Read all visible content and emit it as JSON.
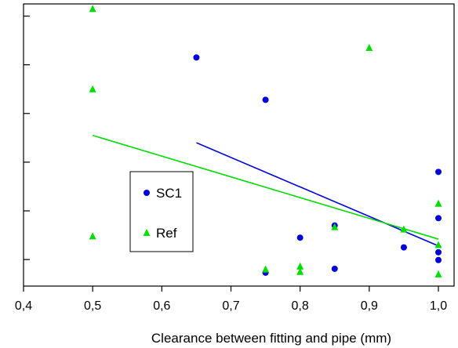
{
  "chart_data": {
    "type": "scatter",
    "title": "",
    "xlabel": "Clearance between fitting and pipe (mm)",
    "ylabel": "",
    "xlim": [
      0.4,
      1.0
    ],
    "ylim": [
      -0.545,
      5.25
    ],
    "x_ticks": [
      0.4,
      0.5,
      0.6,
      0.7,
      0.8,
      0.9,
      1.0
    ],
    "x_tick_labels": [
      "0,4",
      "0,5",
      "0,6",
      "0,7",
      "0,8",
      "0,9",
      "1,0"
    ],
    "y_ticks": [
      0,
      1,
      2,
      3,
      4,
      5
    ],
    "y_tick_labels": [
      "",
      "",
      "",
      "",
      "",
      ""
    ],
    "grid": false,
    "legend_position": "center-left",
    "series": [
      {
        "name": "SC1",
        "marker": "circle",
        "color": "#0000dd",
        "points": [
          {
            "x": 0.65,
            "y": 4.15
          },
          {
            "x": 0.75,
            "y": 3.28
          },
          {
            "x": 0.75,
            "y": -0.27
          },
          {
            "x": 0.8,
            "y": 0.45
          },
          {
            "x": 0.85,
            "y": 0.7
          },
          {
            "x": 0.85,
            "y": -0.19
          },
          {
            "x": 0.95,
            "y": 0.25
          },
          {
            "x": 1.0,
            "y": 1.8
          },
          {
            "x": 1.0,
            "y": 0.85
          },
          {
            "x": 1.0,
            "y": 0.15
          },
          {
            "x": 1.0,
            "y": -0.01
          }
        ],
        "trend": {
          "x": [
            0.65,
            1.0
          ],
          "y": [
            2.4,
            0.28
          ]
        }
      },
      {
        "name": "Ref",
        "marker": "triangle",
        "color": "#00dd00",
        "points": [
          {
            "x": 0.5,
            "y": 5.15
          },
          {
            "x": 0.5,
            "y": 3.5
          },
          {
            "x": 0.5,
            "y": 0.48
          },
          {
            "x": 0.75,
            "y": -0.2
          },
          {
            "x": 0.8,
            "y": -0.14
          },
          {
            "x": 0.8,
            "y": -0.25
          },
          {
            "x": 0.85,
            "y": 0.67
          },
          {
            "x": 0.9,
            "y": 4.35
          },
          {
            "x": 0.95,
            "y": 0.62
          },
          {
            "x": 1.0,
            "y": 1.15
          },
          {
            "x": 1.0,
            "y": 0.3
          },
          {
            "x": 1.0,
            "y": -0.3
          }
        ],
        "trend": {
          "x": [
            0.5,
            1.0
          ],
          "y": [
            2.55,
            0.42
          ]
        }
      }
    ]
  }
}
